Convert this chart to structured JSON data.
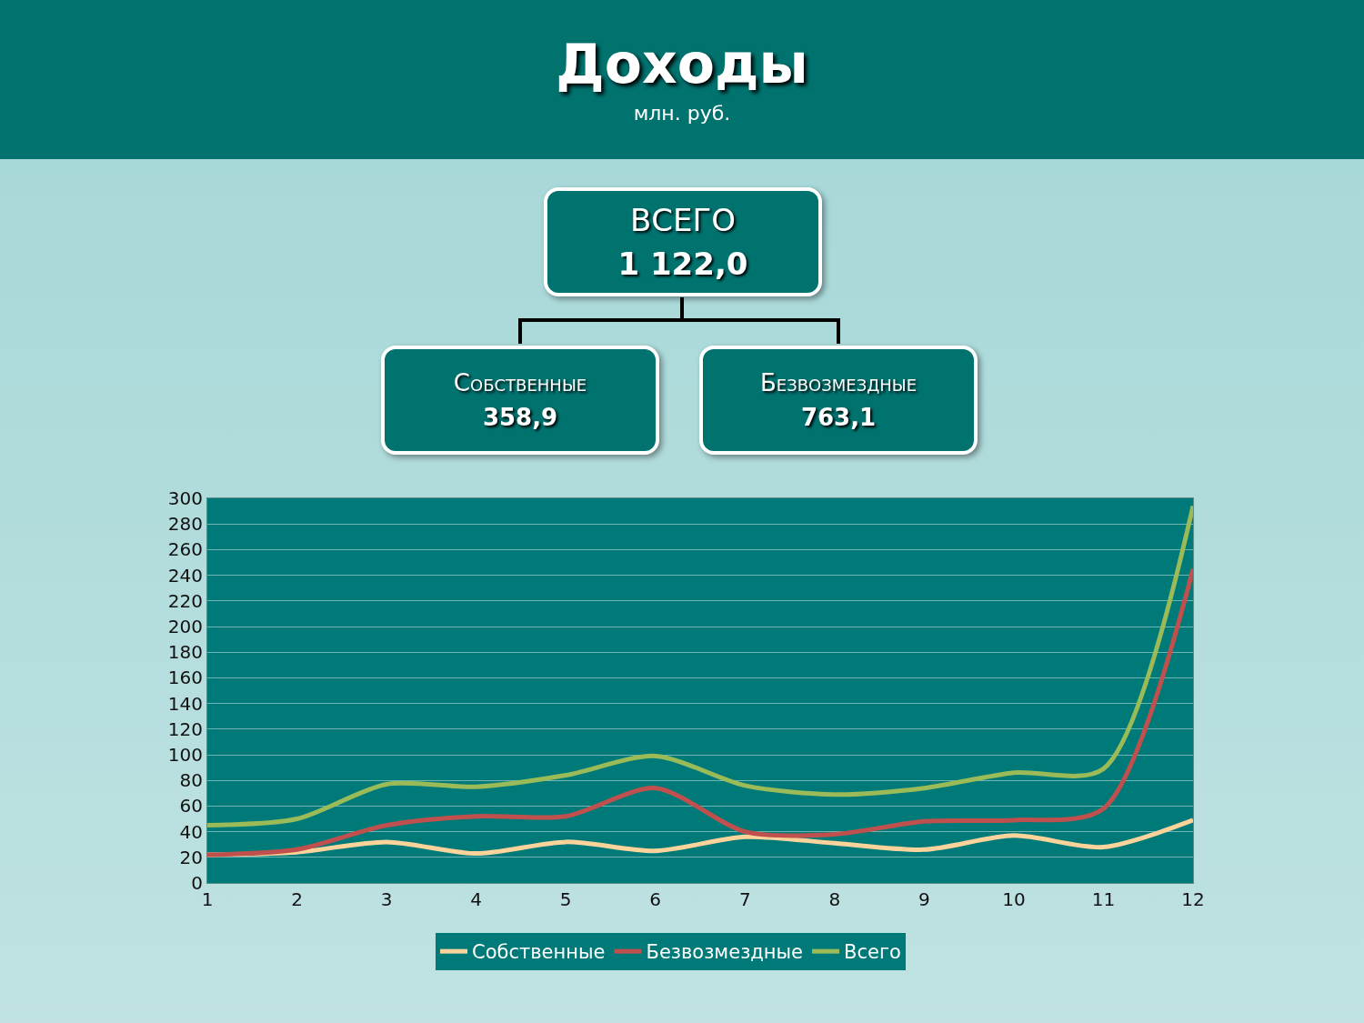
{
  "chart_data": {
    "type": "line",
    "title": "Доходы",
    "subtitle": "млн. руб.",
    "annotations": [
      "ВСЕГО\n1 122,0",
      "Собственные\n358,9",
      "Безвозмездные\n763,1"
    ],
    "x": [
      1,
      2,
      3,
      4,
      5,
      6,
      7,
      8,
      9,
      10,
      11,
      12
    ],
    "series": [
      {
        "name": "Собственные",
        "color": "#fcd39b",
        "values": [
          22,
          24,
          32,
          23,
          32,
          25,
          36,
          31,
          26,
          37,
          28,
          49
        ]
      },
      {
        "name": "Безвозмездные",
        "color": "#c0504d",
        "values": [
          22,
          26,
          45,
          52,
          52,
          74,
          40,
          38,
          48,
          49,
          58,
          245
        ]
      },
      {
        "name": "Всего",
        "color": "#9bbb59",
        "values": [
          45,
          50,
          77,
          75,
          84,
          99,
          76,
          69,
          74,
          86,
          89,
          294
        ]
      }
    ],
    "xlim": [
      1,
      12
    ],
    "xticks": [
      1,
      2,
      3,
      4,
      5,
      6,
      7,
      8,
      9,
      10,
      11,
      12
    ],
    "ylim": [
      0,
      300
    ],
    "yticks": [
      0,
      20,
      40,
      60,
      80,
      100,
      120,
      140,
      160,
      180,
      200,
      220,
      240,
      260,
      280,
      300
    ],
    "grid": "y",
    "legend": "bottom",
    "marker": "none",
    "line_style": "solid"
  }
}
